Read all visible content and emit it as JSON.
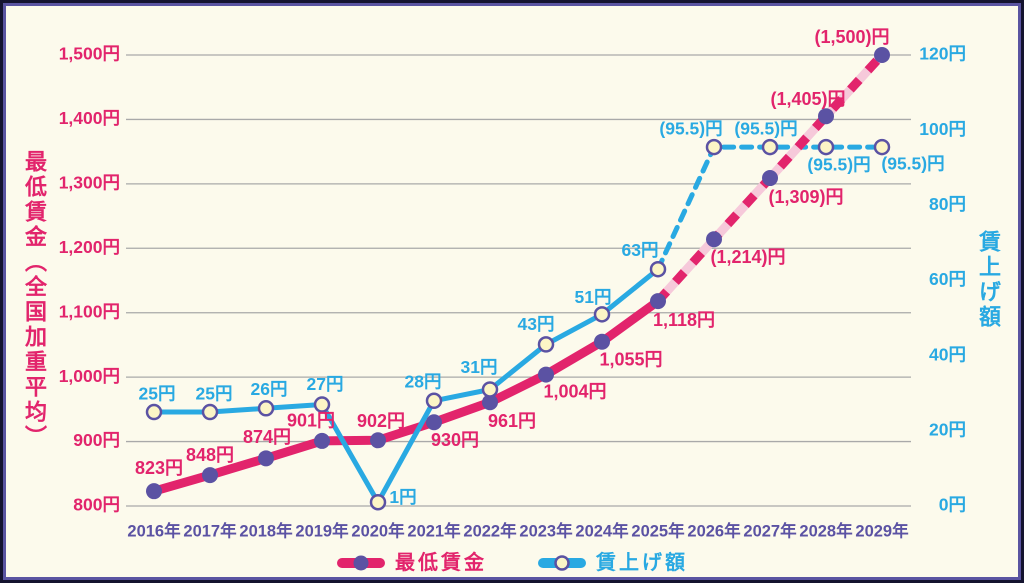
{
  "chart_data": {
    "type": "line",
    "categories": [
      "2016年",
      "2017年",
      "2018年",
      "2019年",
      "2020年",
      "2021年",
      "2022年",
      "2023年",
      "2024年",
      "2025年",
      "2026年",
      "2027年",
      "2028年",
      "2029年"
    ],
    "series": [
      {
        "name": "最低賃金",
        "axis": "left",
        "values": [
          823,
          848,
          874,
          901,
          902,
          930,
          961,
          1004,
          1055,
          1118,
          1214,
          1309,
          1405,
          1500
        ],
        "labels": [
          "823円",
          "848円",
          "874円",
          "901円",
          "902円",
          "930円",
          "961円",
          "1,004円",
          "1,055円",
          "1,118円",
          "(1,214)円",
          "(1,309)円",
          "(1,405)円",
          "(1,500)円"
        ],
        "projected_from_index": 9,
        "marker": "solid-purple-dot"
      },
      {
        "name": "賃上げ額",
        "axis": "right",
        "values": [
          25,
          25,
          26,
          27,
          1,
          28,
          31,
          43,
          51,
          63,
          95.5,
          95.5,
          95.5,
          95.5
        ],
        "labels": [
          "25円",
          "25円",
          "26円",
          "27円",
          "1円",
          "28円",
          "31円",
          "43円",
          "51円",
          "63円",
          "(95.5)円",
          "(95.5)円",
          "(95.5)円",
          "(95.5)円"
        ],
        "projected_from_index": 9,
        "marker": "cream-circle-purple-ring"
      }
    ],
    "left_axis": {
      "title": "最低賃金（全国加重平均）",
      "range": [
        800,
        1500
      ],
      "tick_values": [
        800,
        900,
        1000,
        1100,
        1200,
        1300,
        1400,
        1500
      ],
      "ticks": [
        "800円",
        "900円",
        "1,000円",
        "1,100円",
        "1,200円",
        "1,300円",
        "1,400円",
        "1,500円"
      ]
    },
    "right_axis": {
      "title": "賃上げ額",
      "range": [
        0,
        120
      ],
      "tick_values": [
        0,
        20,
        40,
        60,
        80,
        100,
        120
      ],
      "ticks": [
        "0円",
        "20円",
        "40円",
        "60円",
        "80円",
        "100円",
        "120円"
      ]
    },
    "grid": true,
    "legend": {
      "position": "bottom",
      "items": [
        {
          "label": "最低賃金"
        },
        {
          "label": "賃上げ額"
        }
      ]
    }
  },
  "colors": {
    "pink": "#e2246c",
    "pink_light": "#f6c9da",
    "blue": "#29a9e2",
    "purple": "#5b52a3",
    "marker_fill": "#fcf5c6",
    "background": "#fcfaec",
    "grid": "#a9a9a9",
    "frame_outer": "#14132f",
    "frame_inner": "#5a54a1"
  }
}
